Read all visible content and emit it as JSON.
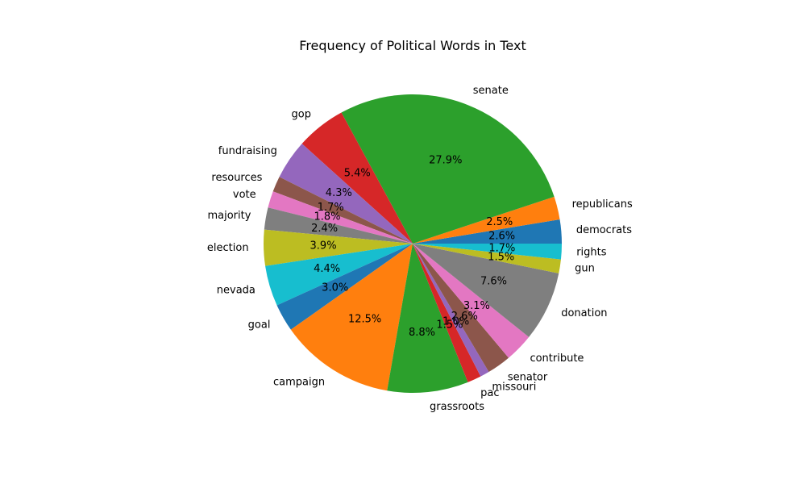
{
  "chart_data": {
    "type": "pie",
    "title": "Frequency of Political Words in Text",
    "labels": [
      "democrats",
      "republicans",
      "senate",
      "gop",
      "fundraising",
      "resources",
      "vote",
      "majority",
      "election",
      "nevada",
      "goal",
      "campaign",
      "grassroots",
      "pac",
      "missouri",
      "senator",
      "contribute",
      "donation",
      "gun",
      "rights"
    ],
    "percent_labels": [
      "2.6%",
      "2.5%",
      "27.9%",
      "5.4%",
      "4.3%",
      "1.7%",
      "1.8%",
      "2.4%",
      "3.9%",
      "4.4%",
      "3.0%",
      "12.5%",
      "8.8%",
      "1.5%",
      "1.0%",
      "2.6%",
      "3.1%",
      "7.6%",
      "1.5%",
      "1.7%"
    ],
    "values": [
      2.6,
      2.5,
      27.9,
      5.4,
      4.3,
      1.7,
      1.8,
      2.4,
      3.9,
      4.4,
      3.0,
      12.5,
      8.8,
      1.5,
      1.0,
      2.6,
      3.1,
      7.6,
      1.5,
      1.7
    ],
    "colors": [
      "#1f77b4",
      "#ff7f0e",
      "#2ca02c",
      "#d62728",
      "#9467bd",
      "#8c564b",
      "#e377c2",
      "#7f7f7f",
      "#bcbd22",
      "#17becf",
      "#1f77b4",
      "#ff7f0e",
      "#2ca02c",
      "#d62728",
      "#9467bd",
      "#8c564b",
      "#e377c2",
      "#7f7f7f",
      "#bcbd22",
      "#17becf"
    ],
    "start_angle_deg": 0,
    "direction": "counterclockwise",
    "legend": "none"
  }
}
